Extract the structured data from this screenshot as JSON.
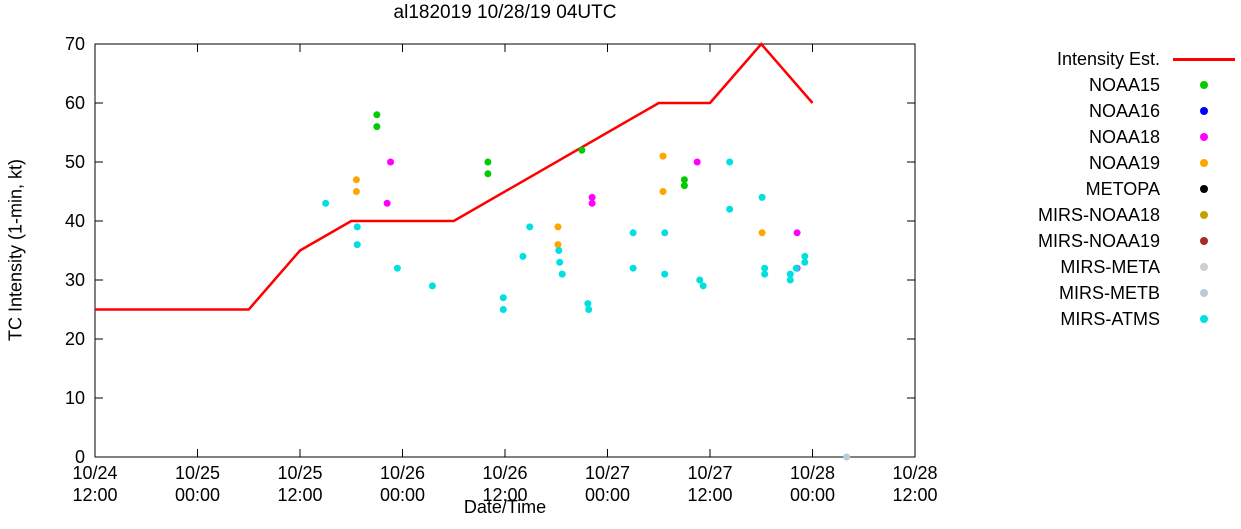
{
  "title": "al182019 10/28/19 04UTC",
  "axes": {
    "x_label": "Date/Time",
    "y_label": "TC Intensity (1-min, kt)"
  },
  "chart_data": {
    "type": "line+scatter",
    "title": "al182019 10/28/19 04UTC",
    "xlabel": "Date/Time",
    "ylabel": "TC Intensity (1-min, kt)",
    "x_unit": "hours since 10/24 12:00",
    "xlim": [
      0,
      96
    ],
    "ylim": [
      0,
      70
    ],
    "grid": false,
    "legend_position": "right-outside",
    "x_tick_hours": [
      0,
      12,
      24,
      36,
      48,
      60,
      72,
      84,
      96
    ],
    "x_tick_labels": [
      [
        "10/24",
        "12:00"
      ],
      [
        "10/25",
        "00:00"
      ],
      [
        "10/25",
        "12:00"
      ],
      [
        "10/26",
        "00:00"
      ],
      [
        "10/26",
        "12:00"
      ],
      [
        "10/27",
        "00:00"
      ],
      [
        "10/27",
        "12:00"
      ],
      [
        "10/28",
        "00:00"
      ],
      [
        "10/28",
        "12:00"
      ]
    ],
    "y_tick_values": [
      0,
      10,
      20,
      30,
      40,
      50,
      60,
      70
    ],
    "series": [
      {
        "name": "Intensity Est.",
        "type": "line",
        "color": "#ff0000",
        "points": [
          [
            0,
            25
          ],
          [
            18,
            25
          ],
          [
            24,
            35
          ],
          [
            30,
            40
          ],
          [
            42,
            40
          ],
          [
            66,
            60
          ],
          [
            72,
            60
          ],
          [
            78,
            70
          ],
          [
            84,
            60
          ]
        ]
      },
      {
        "name": "NOAA15",
        "type": "scatter",
        "color": "#00cc00",
        "points": [
          [
            33,
            58
          ],
          [
            33,
            56
          ],
          [
            46,
            50
          ],
          [
            46,
            48
          ],
          [
            57,
            52
          ],
          [
            69,
            47
          ],
          [
            69,
            46
          ]
        ]
      },
      {
        "name": "NOAA16",
        "type": "scatter",
        "color": "#0000ff",
        "points": []
      },
      {
        "name": "NOAA18",
        "type": "scatter",
        "color": "#ff00ff",
        "points": [
          [
            34.6,
            50
          ],
          [
            34.2,
            43
          ],
          [
            58.2,
            44
          ],
          [
            58.2,
            43
          ],
          [
            70.5,
            50
          ],
          [
            82.2,
            38
          ],
          [
            82.2,
            32
          ]
        ]
      },
      {
        "name": "NOAA19",
        "type": "scatter",
        "color": "#ffa500",
        "points": [
          [
            30.6,
            47
          ],
          [
            30.6,
            45
          ],
          [
            54.2,
            39
          ],
          [
            54.2,
            36
          ],
          [
            66.5,
            51
          ],
          [
            66.5,
            45
          ],
          [
            78.1,
            38
          ]
        ]
      },
      {
        "name": "METOPA",
        "type": "scatter",
        "color": "#000000",
        "points": []
      },
      {
        "name": "MIRS-NOAA18",
        "type": "scatter",
        "color": "#c4a000",
        "points": []
      },
      {
        "name": "MIRS-NOAA19",
        "type": "scatter",
        "color": "#a52a2a",
        "points": []
      },
      {
        "name": "MIRS-META",
        "type": "scatter",
        "color": "#cfcfcf",
        "points": []
      },
      {
        "name": "MIRS-METB",
        "type": "scatter",
        "color": "#b7ccd6",
        "points": [
          [
            88,
            0
          ]
        ]
      },
      {
        "name": "MIRS-ATMS",
        "type": "scatter",
        "color": "#00e0e0",
        "points": [
          [
            27,
            43
          ],
          [
            30.7,
            39
          ],
          [
            30.7,
            36
          ],
          [
            35.4,
            32
          ],
          [
            39.5,
            29
          ],
          [
            47.8,
            27
          ],
          [
            47.8,
            25
          ],
          [
            50.1,
            34
          ],
          [
            50.9,
            39
          ],
          [
            54.3,
            35
          ],
          [
            54.4,
            33
          ],
          [
            54.7,
            31
          ],
          [
            57.7,
            26
          ],
          [
            57.8,
            25
          ],
          [
            63,
            38
          ],
          [
            63,
            32
          ],
          [
            66.7,
            38
          ],
          [
            66.7,
            31
          ],
          [
            70.8,
            30
          ],
          [
            71.2,
            29
          ],
          [
            74.3,
            50
          ],
          [
            74.3,
            42
          ],
          [
            78.1,
            44
          ],
          [
            78.4,
            32
          ],
          [
            78.4,
            31
          ],
          [
            81.4,
            31
          ],
          [
            81.4,
            30
          ],
          [
            82.1,
            32
          ],
          [
            83.1,
            34
          ],
          [
            83.1,
            33
          ]
        ]
      }
    ]
  }
}
